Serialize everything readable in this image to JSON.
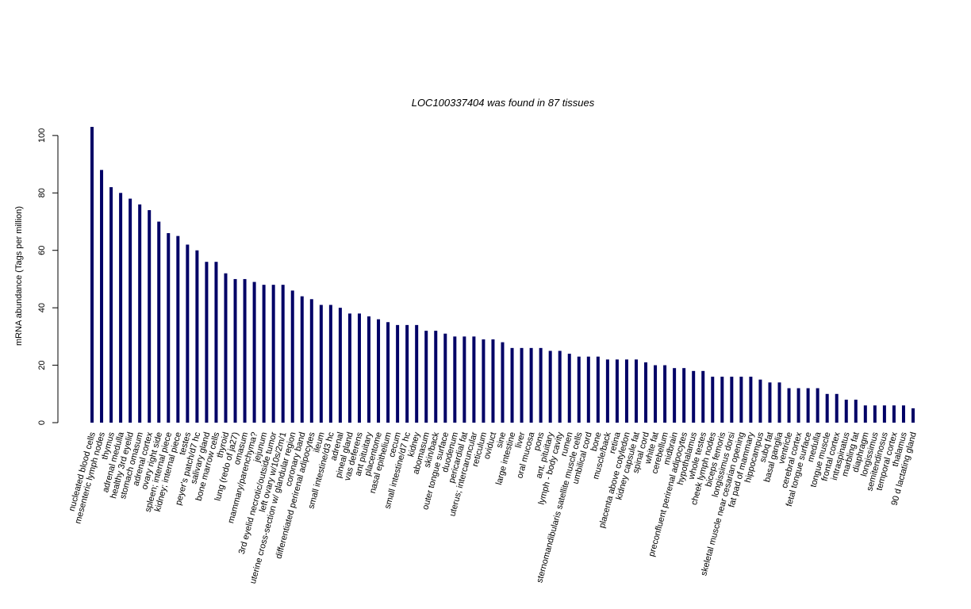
{
  "chart_data": {
    "type": "bar",
    "title": "LOC100337404  was found in  87  tissues",
    "y_label": "mRNA abundance (Tags per million)",
    "color": "#000066",
    "ylim": [
      0,
      103
    ],
    "yticks": [
      0,
      20,
      40,
      60,
      80,
      100
    ],
    "categories": [
      "nucleated blood cells",
      "mesenteric lymph nodes",
      "thymus",
      "adrenal medulla",
      "healthy 3rd eyelid",
      "stomach omasum",
      "adrenal cortex",
      "ovary right side",
      "spleen; internal piece",
      "kidney; internal piece",
      "testes",
      "peyer's patch/d7 hc",
      "salivary gland",
      "bone marrow cells",
      "thyroid",
      "lung (redo of ja27)",
      "omasum",
      "mammary/parenchyma?",
      "jejunum",
      "3rd eyelid necrotic/outside tumor",
      "left ovary w/10s/2m/1",
      "uterine cross-section w/ glandular region",
      "coronary band",
      "differentiated perirenal adipocytes",
      "ileum",
      "small intestine/d3 hc",
      "adrenal",
      "pineal gland",
      "vas deferens",
      "ant pituitary",
      "placentome",
      "nasal epithelium",
      "cecum",
      "small intestine/d7 hc",
      "kidney",
      "abomasum",
      "skin/back",
      "outer tongue surface",
      "duodenum",
      "pericardial fat",
      "uterus; intercaruncular",
      "reticulum",
      "oviduct",
      "sine",
      "large intestine",
      "liver",
      "oral mucosa",
      "pons",
      "ant. pituitary",
      "lymph - body cavity",
      "rumen",
      "sternomandibularis satellite muscle cells",
      "umbilical cord",
      "bone",
      "muscle/back",
      "retina",
      "placenta above cotyledon",
      "kidney capsule fat",
      "spinal cord",
      "white fat",
      "cerebellum",
      "midbrain",
      "preconfluent perirenal adipocytes",
      "hypothalamus",
      "whole testes",
      "cheek lymph nodes",
      "biceps femoris",
      "longissimus dorsi",
      "skeletal muscle near cesarian opening",
      "fat pad of mammary",
      "hippocampus",
      "subq fat",
      "basal ganglia",
      "ventricle",
      "cerebral cortex",
      "fetal tongue surface",
      "medulla",
      "tongue muscle",
      "frontal cortex",
      "intraspinatus",
      "marbling fat",
      "diaphragm",
      "longissimus",
      "semitendinosus",
      "temporal cortex",
      "thalamus",
      "90 d lactating gland"
    ],
    "values": [
      103,
      88,
      82,
      80,
      78,
      76,
      74,
      70,
      66,
      65,
      62,
      60,
      56,
      56,
      52,
      50,
      50,
      49,
      48,
      48,
      48,
      46,
      44,
      43,
      41,
      41,
      40,
      38,
      38,
      37,
      36,
      35,
      34,
      34,
      34,
      32,
      32,
      31,
      30,
      30,
      30,
      29,
      29,
      28,
      26,
      26,
      26,
      26,
      25,
      25,
      24,
      23,
      23,
      23,
      22,
      22,
      22,
      22,
      21,
      20,
      20,
      19,
      19,
      18,
      18,
      16,
      16,
      16,
      16,
      16,
      15,
      14,
      14,
      12,
      12,
      12,
      12,
      10,
      10,
      8,
      8,
      6,
      6,
      6,
      6,
      6,
      5
    ]
  }
}
